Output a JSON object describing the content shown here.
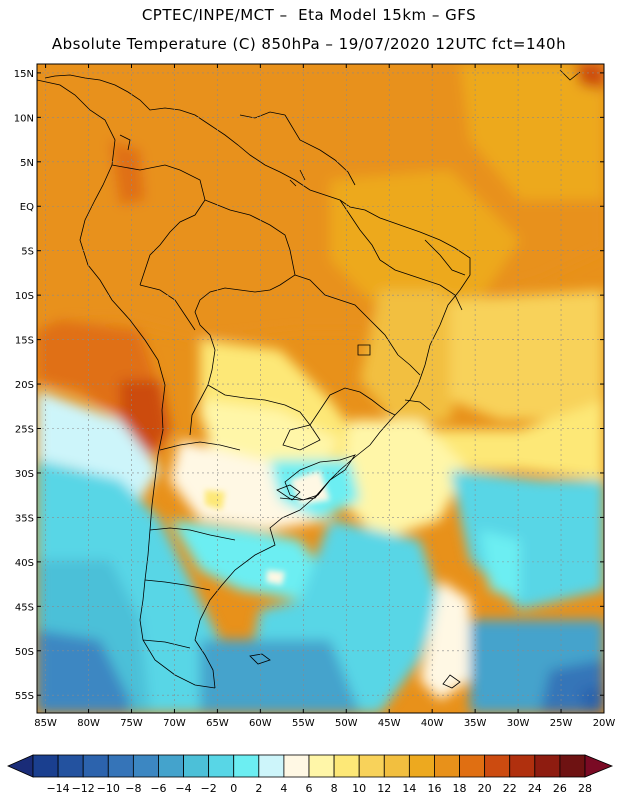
{
  "header": {
    "line1": "CPTEC/INPE/MCT –  Eta Model 15km – GFS",
    "line2": "Absolute Temperature (C) 850hPa – 19/07/2020 12UTC fct=140h"
  },
  "map": {
    "lat_labels": [
      "15N",
      "10N",
      "5N",
      "EQ",
      "5S",
      "10S",
      "15S",
      "20S",
      "25S",
      "30S",
      "35S",
      "40S",
      "45S",
      "50S",
      "55S"
    ],
    "lon_labels": [
      "85W",
      "80W",
      "75W",
      "70W",
      "65W",
      "60W",
      "55W",
      "50W",
      "45W",
      "40W",
      "35W",
      "30W",
      "25W",
      "20W"
    ],
    "lat_min": -57,
    "lat_max": 16,
    "lon_min": -86,
    "lon_max": -20
  },
  "colorbar": {
    "labels": [
      "-14",
      "-12",
      "-10",
      "-8",
      "-6",
      "-4",
      "-2",
      "0",
      "2",
      "4",
      "6",
      "8",
      "10",
      "12",
      "14",
      "16",
      "18",
      "20",
      "22",
      "24",
      "26",
      "28"
    ],
    "colors": [
      "#1a3f8f",
      "#23529f",
      "#2c63ad",
      "#3574b8",
      "#3c87c2",
      "#44a3cc",
      "#4cc0d8",
      "#58d6e6",
      "#6ceef2",
      "#cdf5fa",
      "#fff8e4",
      "#fff6a8",
      "#fde877",
      "#f8d25a",
      "#f2bf3f",
      "#eda91f",
      "#e8911a",
      "#e06f12",
      "#cc4b10",
      "#b0300e",
      "#8e1c10",
      "#6e1212"
    ],
    "under_color": "#1a2c78",
    "over_color": "#7a0a24"
  }
}
